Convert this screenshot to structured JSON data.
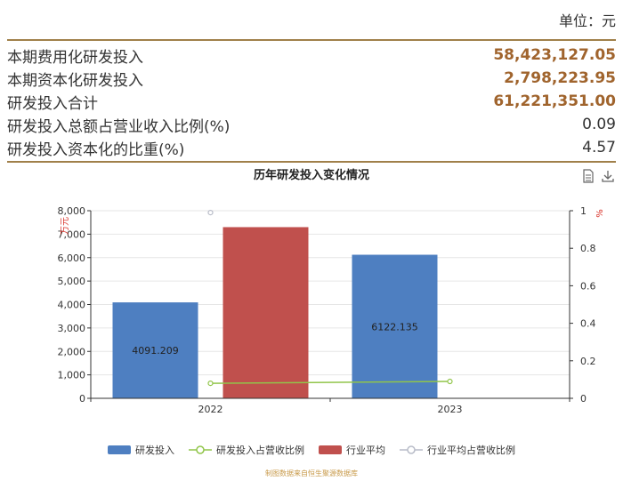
{
  "header": {
    "unit_label": "单位：元"
  },
  "table": {
    "rows": [
      {
        "label": "本期费用化研发投入",
        "value": "58,423,127.05",
        "bold": true
      },
      {
        "label": "本期资本化研发投入",
        "value": "2,798,223.95",
        "bold": true
      },
      {
        "label": "研发投入合计",
        "value": "61,221,351.00",
        "bold": true
      },
      {
        "label": "研发投入总额占营业收入比例(%)",
        "value": "0.09",
        "bold": false
      },
      {
        "label": "研发投入资本化的比重(%)",
        "value": "4.57",
        "bold": false
      }
    ]
  },
  "toolbar": {
    "icons": [
      "document-icon",
      "download-icon"
    ]
  },
  "chart_data": {
    "type": "bar",
    "title": "历年研发投入变化情况",
    "categories": [
      "2022",
      "2023"
    ],
    "y_left": {
      "label": "万元",
      "range": [
        0,
        8000
      ],
      "ticks": [
        "0",
        "1,000",
        "2,000",
        "3,000",
        "4,000",
        "5,000",
        "6,000",
        "7,000",
        "8,000"
      ]
    },
    "y_right": {
      "label": "%",
      "range": [
        0,
        1
      ],
      "ticks": [
        "0",
        "0.2",
        "0.4",
        "0.6",
        "0.8",
        "1"
      ]
    },
    "series": [
      {
        "name": "研发投入",
        "kind": "bar",
        "axis": "left",
        "color": "#4e7fc1",
        "values": [
          4091.209,
          6122.135
        ],
        "labels": [
          "4091.209",
          "6122.135"
        ]
      },
      {
        "name": "研发投入占营收比例",
        "kind": "line",
        "axis": "right",
        "color": "#91c54a",
        "values": [
          0.08,
          0.09
        ]
      },
      {
        "name": "行业平均",
        "kind": "bar",
        "axis": "left",
        "color": "#c0504d",
        "values": [
          7300,
          null
        ]
      },
      {
        "name": "行业平均占营收比例",
        "kind": "line",
        "axis": "right",
        "color": "#b8bcc8",
        "values": [
          0.99,
          null
        ]
      }
    ],
    "grid": true,
    "legend_position": "bottom"
  },
  "footer": {
    "source": "制图数据来自恒生聚源数据库"
  }
}
